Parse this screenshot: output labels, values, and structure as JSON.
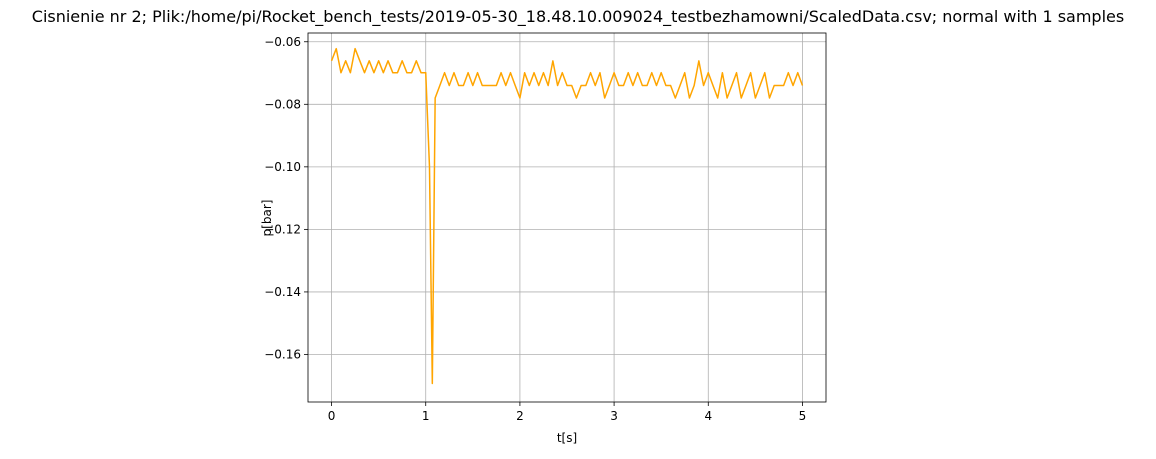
{
  "chart_data": {
    "type": "line",
    "title": "Cisnienie nr 2; Plik:/home/pi/Rocket_bench_tests/2019-05-30_18.48.10.009024_testbezhamowni/ScaledData.csv; normal with 1 samples",
    "xlabel": "t[s]",
    "ylabel": "p[bar]",
    "xlim": [
      -0.25,
      5.25
    ],
    "ylim": [
      -0.1752,
      -0.0572
    ],
    "xticks": [
      0,
      1,
      2,
      3,
      4,
      5
    ],
    "yticks": [
      {
        "value": -0.16,
        "label": "−0.16"
      },
      {
        "value": -0.14,
        "label": "−0.14"
      },
      {
        "value": -0.12,
        "label": "−0.12"
      },
      {
        "value": -0.1,
        "label": "−0.10"
      },
      {
        "value": -0.08,
        "label": "−0.08"
      },
      {
        "value": -0.06,
        "label": "−0.06"
      }
    ],
    "grid": true,
    "series": [
      {
        "color": "#ffa500",
        "x": [
          0,
          0.05,
          0.1,
          0.15,
          0.2,
          0.25,
          0.3,
          0.35,
          0.4,
          0.45,
          0.5,
          0.55,
          0.6,
          0.65,
          0.7,
          0.75,
          0.8,
          0.85,
          0.9,
          0.95,
          1.0,
          1.04,
          1.07,
          1.1,
          1.15,
          1.2,
          1.25,
          1.3,
          1.35,
          1.4,
          1.45,
          1.5,
          1.55,
          1.6,
          1.65,
          1.7,
          1.75,
          1.8,
          1.85,
          1.9,
          1.95,
          2.0,
          2.05,
          2.1,
          2.15,
          2.2,
          2.25,
          2.3,
          2.35,
          2.4,
          2.45,
          2.5,
          2.55,
          2.6,
          2.65,
          2.7,
          2.75,
          2.8,
          2.85,
          2.9,
          2.95,
          3.0,
          3.05,
          3.1,
          3.15,
          3.2,
          3.25,
          3.3,
          3.35,
          3.4,
          3.45,
          3.5,
          3.55,
          3.6,
          3.65,
          3.7,
          3.75,
          3.8,
          3.85,
          3.9,
          3.95,
          4.0,
          4.05,
          4.1,
          4.15,
          4.2,
          4.25,
          4.3,
          4.35,
          4.4,
          4.45,
          4.5,
          4.55,
          4.6,
          4.65,
          4.7,
          4.75,
          4.8,
          4.85,
          4.9,
          4.95,
          5.0
        ],
        "values": [
          -0.0661,
          -0.0622,
          -0.0699,
          -0.0661,
          -0.0699,
          -0.0622,
          -0.0661,
          -0.0699,
          -0.0661,
          -0.0699,
          -0.0661,
          -0.0699,
          -0.0661,
          -0.0699,
          -0.0699,
          -0.0661,
          -0.0699,
          -0.0699,
          -0.0661,
          -0.0699,
          -0.0699,
          -0.1,
          -0.1693,
          -0.078,
          -0.074,
          -0.0699,
          -0.074,
          -0.0699,
          -0.074,
          -0.074,
          -0.0699,
          -0.074,
          -0.0699,
          -0.074,
          -0.074,
          -0.074,
          -0.074,
          -0.0699,
          -0.074,
          -0.0699,
          -0.074,
          -0.078,
          -0.0699,
          -0.074,
          -0.0699,
          -0.074,
          -0.0699,
          -0.074,
          -0.0661,
          -0.074,
          -0.0699,
          -0.074,
          -0.074,
          -0.078,
          -0.074,
          -0.074,
          -0.0699,
          -0.074,
          -0.0699,
          -0.078,
          -0.074,
          -0.0699,
          -0.074,
          -0.074,
          -0.0699,
          -0.074,
          -0.0699,
          -0.074,
          -0.074,
          -0.0699,
          -0.074,
          -0.0699,
          -0.074,
          -0.074,
          -0.078,
          -0.074,
          -0.0699,
          -0.078,
          -0.074,
          -0.0661,
          -0.074,
          -0.0699,
          -0.074,
          -0.078,
          -0.0699,
          -0.078,
          -0.074,
          -0.0699,
          -0.078,
          -0.074,
          -0.0699,
          -0.078,
          -0.074,
          -0.0699,
          -0.078,
          -0.074,
          -0.074,
          -0.074,
          -0.0699,
          -0.074,
          -0.0699,
          -0.074
        ]
      }
    ]
  }
}
